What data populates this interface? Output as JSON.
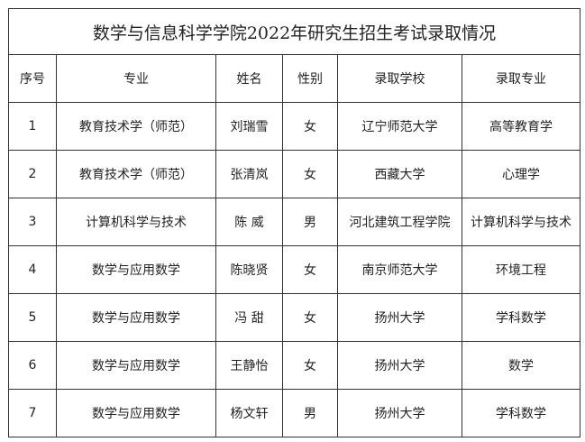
{
  "title": "数学与信息科学学院2022年研究生招生考试录取情况",
  "columns": [
    "序号",
    "专业",
    "姓名",
    "性别",
    "录取学校",
    "录取专业"
  ],
  "rows": [
    [
      "1",
      "教育技术学（师范）",
      "刘瑞雪",
      "女",
      "辽宁师范大学",
      "高等教育学"
    ],
    [
      "2",
      "教育技术学（师范）",
      "张清岚",
      "女",
      "西藏大学",
      "心理学"
    ],
    [
      "3",
      "计算机科学与技术",
      "陈 威",
      "男",
      "河北建筑工程学院",
      "计算机科学与技术"
    ],
    [
      "4",
      "数学与应用数学",
      "陈晓贤",
      "女",
      "南京师范大学",
      "环境工程"
    ],
    [
      "5",
      "数学与应用数学",
      "冯 甜",
      "女",
      "扬州大学",
      "学科数学"
    ],
    [
      "6",
      "数学与应用数学",
      "王静怡",
      "女",
      "扬州大学",
      "数学"
    ],
    [
      "7",
      "数学与应用数学",
      "杨文轩",
      "男",
      "扬州大学",
      "学科数学"
    ]
  ]
}
